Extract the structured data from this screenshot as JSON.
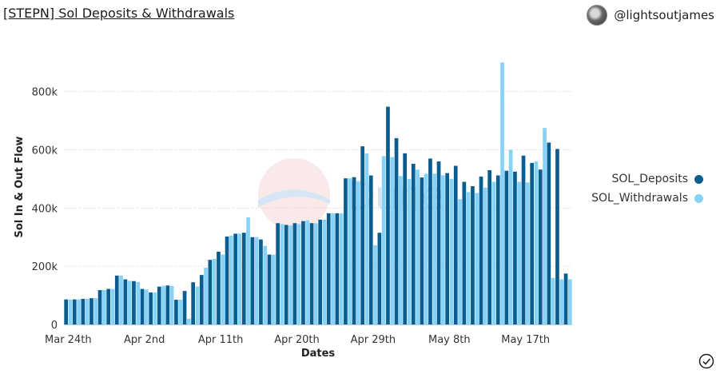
{
  "header": {
    "title": "[STEPN] Sol Deposits & Withdrawals",
    "author": "@lightsoutjames"
  },
  "icons": {
    "avatar": "avatar-icon",
    "status": "check-circle-icon"
  },
  "chart_data": {
    "type": "bar",
    "xlabel": "Dates",
    "ylabel": "Sol In & Out Flow",
    "ylim": [
      0,
      950000
    ],
    "yticks": [
      0,
      200000,
      400000,
      600000,
      800000
    ],
    "ytick_labels": [
      "0",
      "200k",
      "400k",
      "600k",
      "800k"
    ],
    "x_tick_labels": [
      {
        "label": "Mar 24th",
        "index": 0
      },
      {
        "label": "Apr 2nd",
        "index": 9
      },
      {
        "label": "Apr 11th",
        "index": 18
      },
      {
        "label": "Apr 20th",
        "index": 27
      },
      {
        "label": "Apr 29th",
        "index": 36
      },
      {
        "label": "May 8th",
        "index": 45
      },
      {
        "label": "May 17th",
        "index": 54
      }
    ],
    "grid": true,
    "legend_position": "right",
    "series": [
      {
        "name": "SOL_Deposits",
        "color": "#0b5d8f",
        "values": [
          86000,
          86000,
          88000,
          90000,
          118000,
          122000,
          168000,
          155000,
          149000,
          122000,
          110000,
          130000,
          134000,
          85000,
          115000,
          145000,
          170000,
          222000,
          250000,
          302000,
          312000,
          315000,
          300000,
          292000,
          240000,
          348000,
          342000,
          348000,
          355000,
          348000,
          360000,
          382000,
          382000,
          502000,
          506000,
          612000,
          512000,
          315000,
          748000,
          640000,
          588000,
          552000,
          505000,
          570000,
          560000,
          520000,
          545000,
          490000,
          475000,
          508000,
          530000,
          512000,
          528000,
          525000,
          580000,
          555000,
          532000,
          625000,
          603000,
          175000
        ]
      },
      {
        "name": "SOL_Withdrawals",
        "color": "#86d3f7",
        "values": [
          86000,
          86000,
          88000,
          90000,
          118000,
          122000,
          168000,
          150000,
          146000,
          120000,
          110000,
          133000,
          132000,
          85000,
          20000,
          130000,
          195000,
          225000,
          240000,
          305000,
          312000,
          368000,
          300000,
          270000,
          240000,
          345000,
          340000,
          345000,
          358000,
          348000,
          360000,
          382000,
          382000,
          502000,
          490000,
          588000,
          272000,
          578000,
          575000,
          510000,
          500000,
          532000,
          518000,
          518000,
          512000,
          500000,
          430000,
          455000,
          452000,
          470000,
          490000,
          900000,
          600000,
          490000,
          488000,
          560000,
          675000,
          160000,
          155000,
          155000
        ]
      }
    ]
  }
}
